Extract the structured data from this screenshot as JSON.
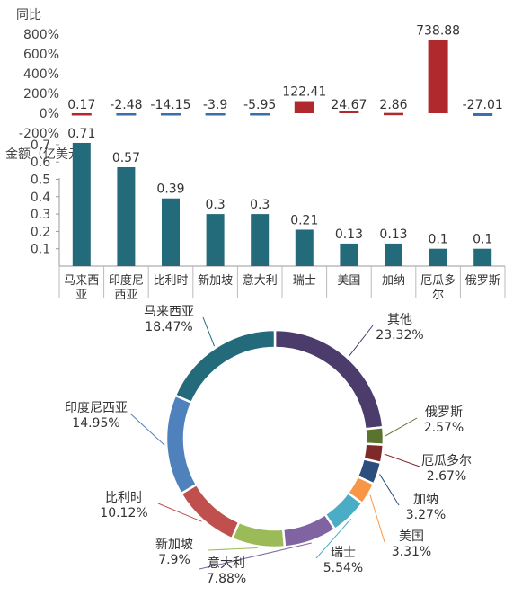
{
  "chart_data": [
    {
      "type": "bar",
      "ylabel": "同比",
      "ylim": [
        -200,
        800
      ],
      "yticks": [
        "800%",
        "600%",
        "400%",
        "200%",
        "0%",
        "-200%"
      ],
      "ytick_values": [
        800,
        600,
        400,
        200,
        0,
        -200
      ],
      "categories": [
        "马来西亚",
        "印度尼西亚",
        "比利时",
        "新加坡",
        "意大利",
        "瑞士",
        "美国",
        "加纳",
        "厄瓜多尔",
        "俄罗斯"
      ],
      "values": [
        0.17,
        -2.48,
        -14.15,
        -3.9,
        -5.95,
        122.41,
        24.67,
        2.86,
        738.88,
        -27.01
      ],
      "data_labels": [
        "0.17",
        "-2.48",
        "-14.15",
        "-3.9",
        "-5.95",
        "122.41",
        "24.67",
        "2.86",
        "738.88",
        "-27.01"
      ],
      "colors": {
        "positive": "#b0292c",
        "negative": "#3a6eae"
      }
    },
    {
      "type": "bar",
      "ylabel": "金额（亿美元）",
      "ylim": [
        0,
        0.75
      ],
      "yticks": [
        "0.7",
        "0.6",
        "0.5",
        "0.4",
        "0.3",
        "0.2",
        "0.1"
      ],
      "ytick_values": [
        0.7,
        0.6,
        0.5,
        0.4,
        0.3,
        0.2,
        0.1
      ],
      "categories": [
        "马来西亚",
        "印度尼西亚",
        "比利时",
        "新加坡",
        "意大利",
        "瑞士",
        "美国",
        "加纳",
        "厄瓜多尔",
        "俄罗斯"
      ],
      "category_lines": [
        [
          "马来西",
          "亚"
        ],
        [
          "印度尼",
          "西亚"
        ],
        [
          "比利时"
        ],
        [
          "新加坡"
        ],
        [
          "意大利"
        ],
        [
          "瑞士"
        ],
        [
          "美国"
        ],
        [
          "加纳"
        ],
        [
          "厄瓜多",
          "尔"
        ],
        [
          "俄罗斯"
        ]
      ],
      "values": [
        0.71,
        0.57,
        0.39,
        0.3,
        0.3,
        0.21,
        0.13,
        0.13,
        0.1,
        0.1
      ],
      "data_labels": [
        "0.71",
        "0.57",
        "0.39",
        "0.3",
        "0.3",
        "0.21",
        "0.13",
        "0.13",
        "0.1",
        "0.1"
      ],
      "colors": {
        "bar": "#236b7b"
      }
    },
    {
      "type": "pie",
      "donut": true,
      "slices": [
        {
          "name": "其他",
          "pct": "23.32%",
          "value": 23.32,
          "color": "#4b3c6b"
        },
        {
          "name": "俄罗斯",
          "pct": "2.57%",
          "value": 2.57,
          "color": "#5a7430"
        },
        {
          "name": "厄瓜多尔",
          "pct": "2.67%",
          "value": 2.67,
          "color": "#7f2a2a"
        },
        {
          "name": "加纳",
          "pct": "3.27%",
          "value": 3.27,
          "color": "#2b4e7f"
        },
        {
          "name": "美国",
          "pct": "3.31%",
          "value": 3.31,
          "color": "#f79646"
        },
        {
          "name": "瑞士",
          "pct": "5.54%",
          "value": 5.54,
          "color": "#4bacc6"
        },
        {
          "name": "意大利",
          "pct": "7.88%",
          "value": 7.88,
          "color": "#8064a2"
        },
        {
          "name": "新加坡",
          "pct": "7.9%",
          "value": 7.9,
          "color": "#9bbb59"
        },
        {
          "name": "比利时",
          "pct": "10.12%",
          "value": 10.12,
          "color": "#c0504d"
        },
        {
          "name": "印度尼西亚",
          "pct": "14.95%",
          "value": 14.95,
          "color": "#4f81bd"
        },
        {
          "name": "马来西亚",
          "pct": "18.47%",
          "value": 18.47,
          "color": "#236b7b"
        }
      ]
    }
  ]
}
